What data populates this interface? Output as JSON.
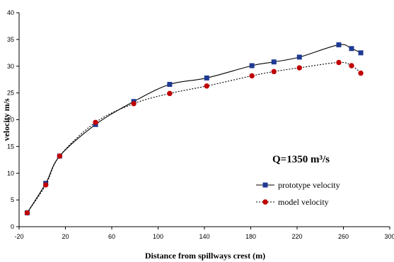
{
  "chart_data": {
    "type": "line",
    "title": "",
    "xlabel": "Distance from spillways crest (m)",
    "ylabel": "velocity m/s",
    "xlim": [
      -20,
      300
    ],
    "ylim": [
      0,
      40
    ],
    "x_ticks": [
      -20,
      20,
      60,
      100,
      140,
      180,
      220,
      260,
      300
    ],
    "y_ticks": [
      0,
      5,
      10,
      15,
      20,
      25,
      30,
      35,
      40
    ],
    "grid": false,
    "legend_position": "bottom-right",
    "annotation": "Q=1350 m³/s",
    "series": [
      {
        "name": "prototype velocity",
        "color": "#1f3a93",
        "marker": "square",
        "line_style": "solid",
        "x": [
          -13,
          3,
          15,
          46,
          79,
          110,
          142,
          181,
          200,
          222,
          256,
          267,
          275
        ],
        "y": [
          2.6,
          8.1,
          13.2,
          19.1,
          23.4,
          26.6,
          27.8,
          30.1,
          30.8,
          31.7,
          34.0,
          33.3,
          32.5
        ]
      },
      {
        "name": "model velocity",
        "color": "#c00000",
        "marker": "circle",
        "line_style": "dotted",
        "x": [
          -13,
          3,
          15,
          46,
          79,
          110,
          142,
          181,
          200,
          222,
          256,
          267,
          275
        ],
        "y": [
          2.6,
          7.8,
          13.2,
          19.5,
          23.0,
          24.9,
          26.3,
          28.2,
          29.0,
          29.7,
          30.7,
          30.1,
          28.7
        ]
      }
    ]
  }
}
